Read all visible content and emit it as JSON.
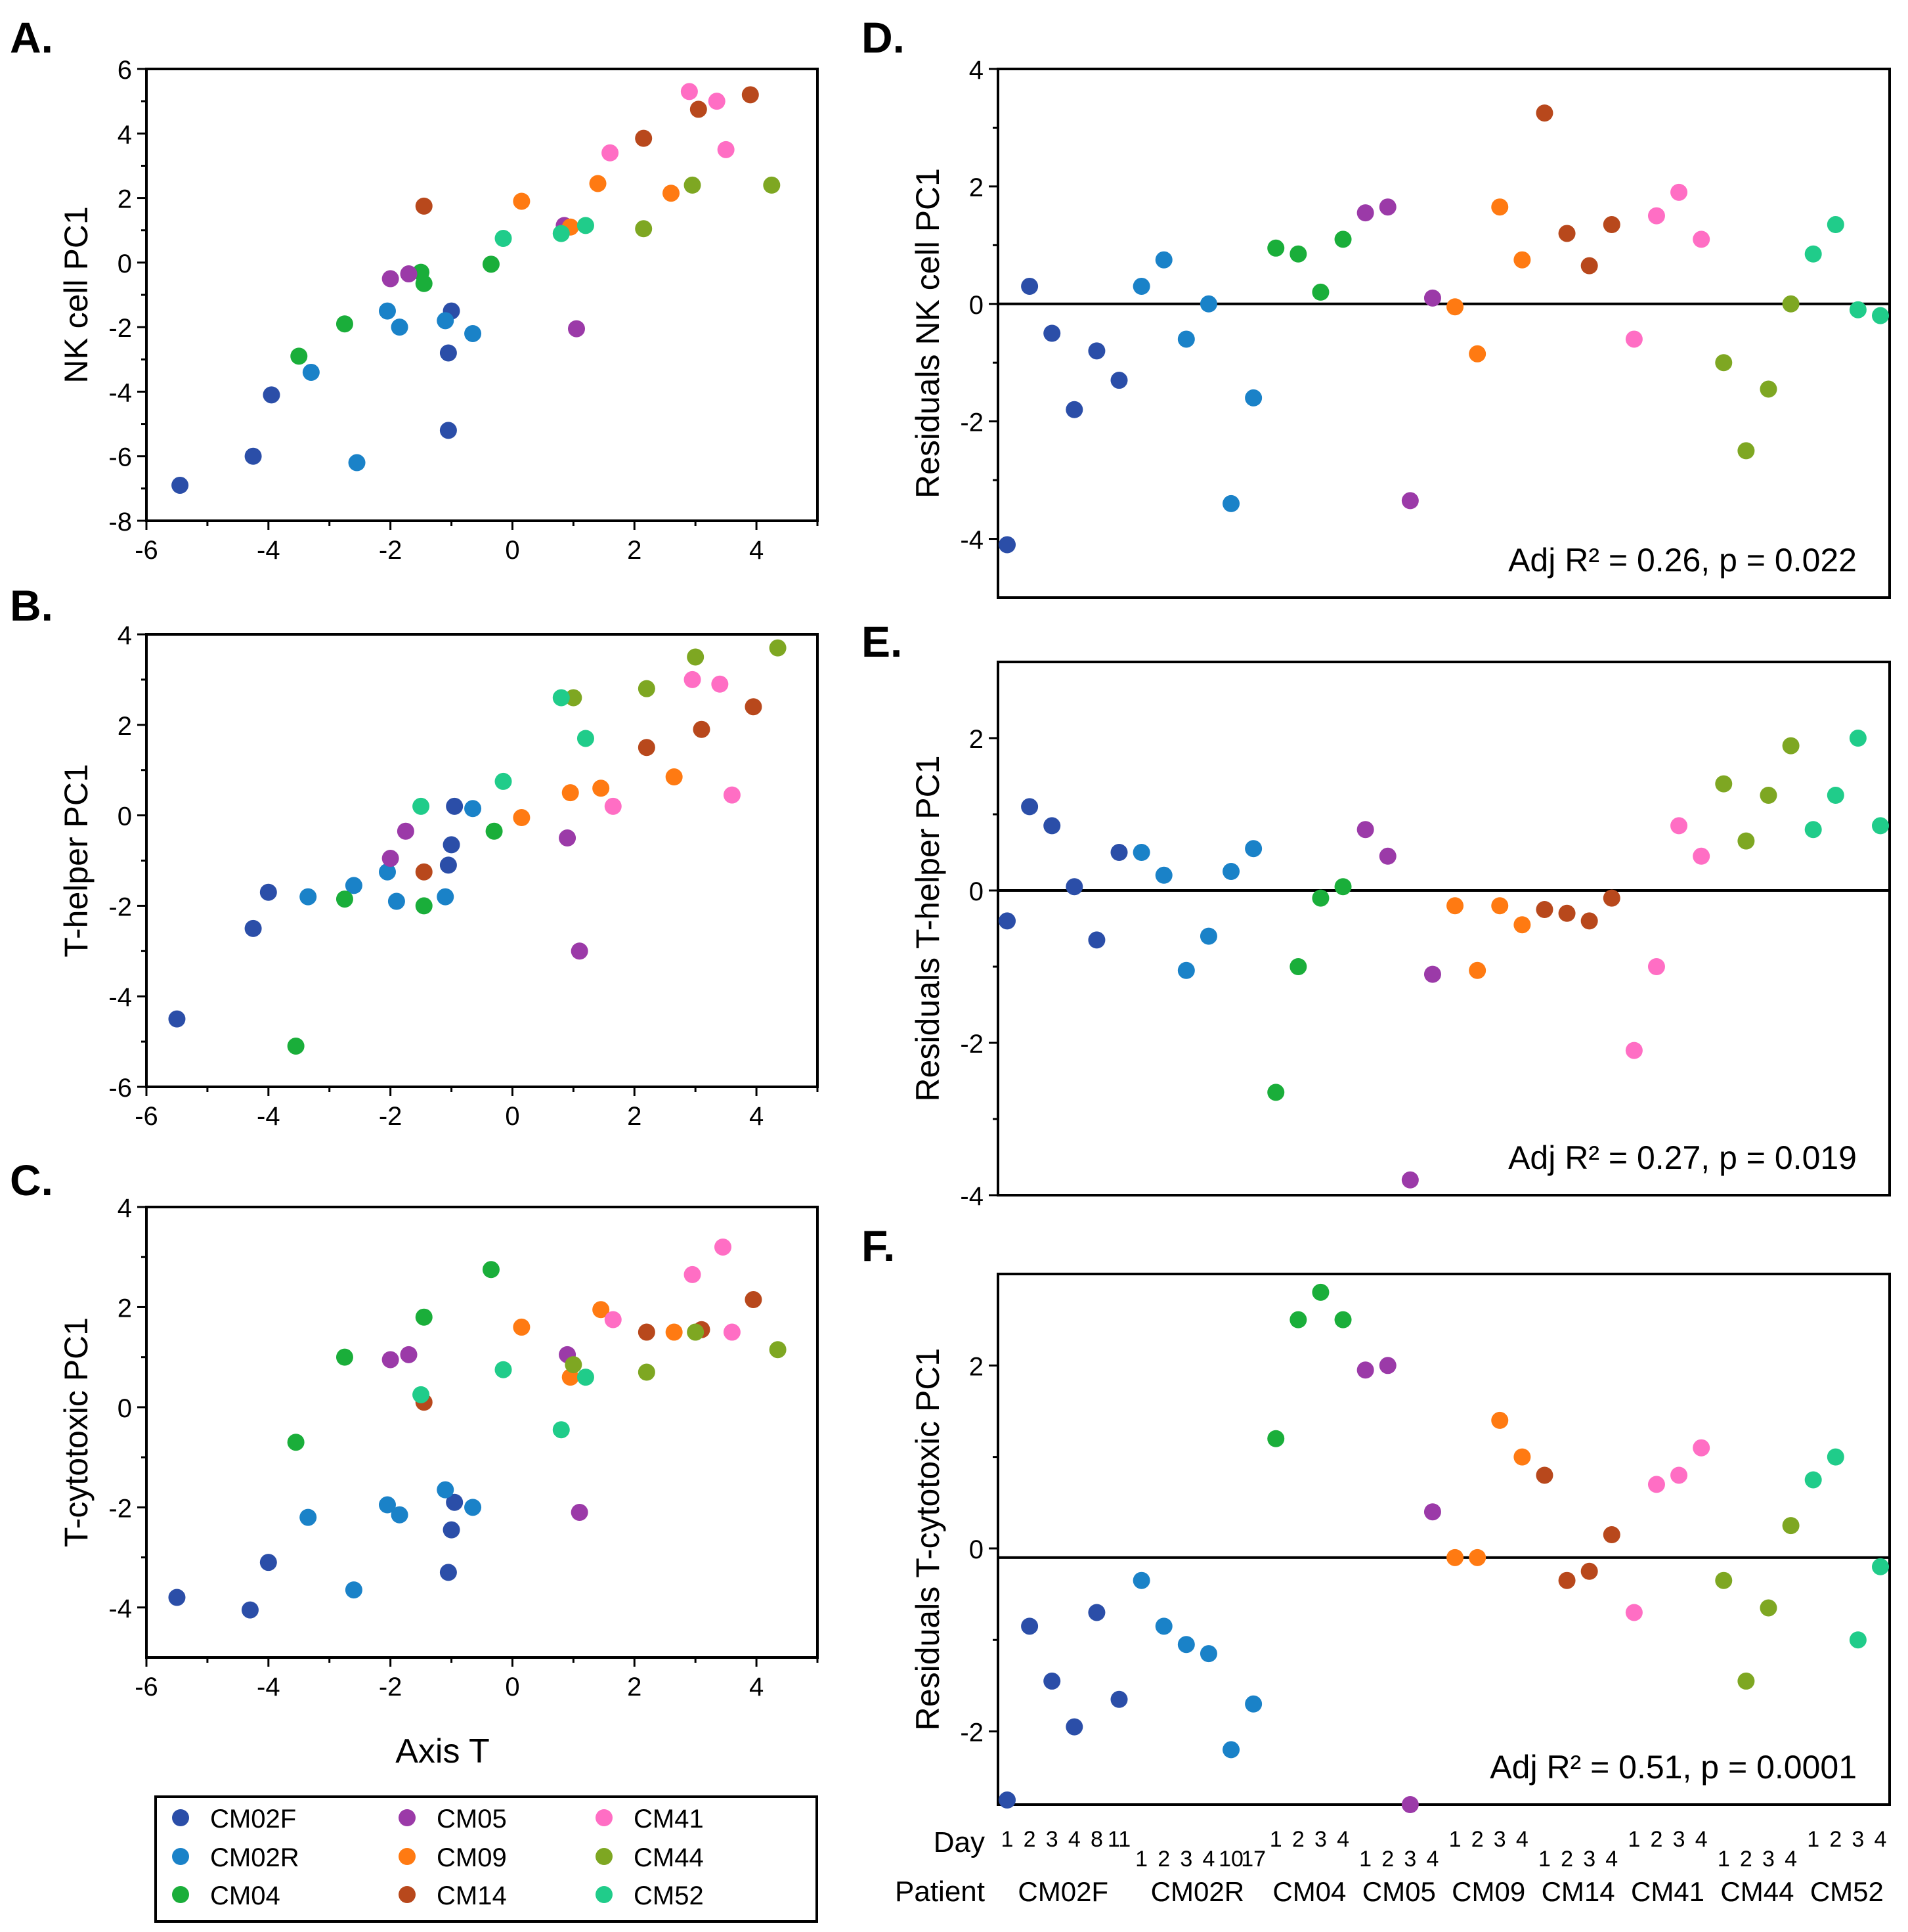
{
  "patients": {
    "CM02F": "#2b4ea8",
    "CM02R": "#1a82c8",
    "CM04": "#1aae3a",
    "CM05": "#9b3aa8",
    "CM09": "#ff7a12",
    "CM14": "#b8481c",
    "CM41": "#ff6ec4",
    "CM44": "#7ea722",
    "CM52": "#20cc8a"
  },
  "legend": {
    "items": [
      "CM02F",
      "CM05",
      "CM41",
      "CM02R",
      "CM09",
      "CM44",
      "CM04",
      "CM14",
      "CM52"
    ]
  },
  "labels": {
    "day": "Day",
    "patient": "Patient"
  },
  "chart_data": [
    {
      "id": "A",
      "panel_label": "A.",
      "type": "scatter",
      "title": "",
      "xlabel": "",
      "ylabel": "NK cell PC1",
      "xlim": [
        -6,
        5
      ],
      "ylim": [
        -8,
        6
      ],
      "xticks": [
        -6,
        -4,
        -2,
        0,
        2,
        4
      ],
      "yticks": [
        -8,
        -6,
        -4,
        -2,
        0,
        2,
        4,
        6
      ],
      "points": [
        {
          "p": "CM02F",
          "x": -5.45,
          "y": -6.9
        },
        {
          "p": "CM02F",
          "x": -4.25,
          "y": -6.0
        },
        {
          "p": "CM02F",
          "x": -3.95,
          "y": -4.1
        },
        {
          "p": "CM02F",
          "x": -1.0,
          "y": -1.5
        },
        {
          "p": "CM02F",
          "x": -1.05,
          "y": -2.8
        },
        {
          "p": "CM02F",
          "x": -1.05,
          "y": -5.2
        },
        {
          "p": "CM02R",
          "x": -3.3,
          "y": -3.4
        },
        {
          "p": "CM02R",
          "x": -2.55,
          "y": -6.2
        },
        {
          "p": "CM02R",
          "x": -2.05,
          "y": -1.5
        },
        {
          "p": "CM02R",
          "x": -1.85,
          "y": -2.0
        },
        {
          "p": "CM02R",
          "x": -1.1,
          "y": -1.8
        },
        {
          "p": "CM02R",
          "x": -0.65,
          "y": -2.2
        },
        {
          "p": "CM04",
          "x": -3.5,
          "y": -2.9
        },
        {
          "p": "CM04",
          "x": -2.75,
          "y": -1.9
        },
        {
          "p": "CM04",
          "x": -1.5,
          "y": -0.3
        },
        {
          "p": "CM04",
          "x": -1.45,
          "y": -0.65
        },
        {
          "p": "CM04",
          "x": -0.35,
          "y": -0.05
        },
        {
          "p": "CM05",
          "x": -2.0,
          "y": -0.5
        },
        {
          "p": "CM05",
          "x": -1.7,
          "y": -0.35
        },
        {
          "p": "CM05",
          "x": 0.85,
          "y": 1.15
        },
        {
          "p": "CM05",
          "x": 1.05,
          "y": -2.05
        },
        {
          "p": "CM09",
          "x": 0.15,
          "y": 1.9
        },
        {
          "p": "CM09",
          "x": 0.95,
          "y": 1.1
        },
        {
          "p": "CM09",
          "x": 1.4,
          "y": 2.45
        },
        {
          "p": "CM09",
          "x": 2.6,
          "y": 2.15
        },
        {
          "p": "CM14",
          "x": -1.45,
          "y": 1.75
        },
        {
          "p": "CM14",
          "x": 2.15,
          "y": 3.85
        },
        {
          "p": "CM14",
          "x": 3.05,
          "y": 4.75
        },
        {
          "p": "CM14",
          "x": 3.9,
          "y": 5.2
        },
        {
          "p": "CM41",
          "x": 1.6,
          "y": 3.4
        },
        {
          "p": "CM41",
          "x": 2.9,
          "y": 5.3
        },
        {
          "p": "CM41",
          "x": 3.35,
          "y": 5.0
        },
        {
          "p": "CM41",
          "x": 3.5,
          "y": 3.5
        },
        {
          "p": "CM44",
          "x": 2.15,
          "y": 1.05
        },
        {
          "p": "CM44",
          "x": 2.95,
          "y": 2.4
        },
        {
          "p": "CM44",
          "x": 4.25,
          "y": 2.4
        },
        {
          "p": "CM52",
          "x": -0.15,
          "y": 0.75
        },
        {
          "p": "CM52",
          "x": 0.8,
          "y": 0.9
        },
        {
          "p": "CM52",
          "x": 1.2,
          "y": 1.15
        }
      ]
    },
    {
      "id": "B",
      "panel_label": "B.",
      "type": "scatter",
      "title": "",
      "xlabel": "",
      "ylabel": "T-helper PC1",
      "xlim": [
        -6,
        5
      ],
      "ylim": [
        -6,
        4
      ],
      "xticks": [
        -6,
        -4,
        -2,
        0,
        2,
        4
      ],
      "yticks": [
        -6,
        -4,
        -2,
        0,
        2,
        4
      ],
      "points": [
        {
          "p": "CM02F",
          "x": -5.5,
          "y": -4.5
        },
        {
          "p": "CM02F",
          "x": -4.25,
          "y": -2.5
        },
        {
          "p": "CM02F",
          "x": -4.0,
          "y": -1.7
        },
        {
          "p": "CM02F",
          "x": -0.95,
          "y": 0.2
        },
        {
          "p": "CM02F",
          "x": -1.0,
          "y": -0.65
        },
        {
          "p": "CM02F",
          "x": -1.05,
          "y": -1.1
        },
        {
          "p": "CM02R",
          "x": -3.35,
          "y": -1.8
        },
        {
          "p": "CM02R",
          "x": -2.6,
          "y": -1.55
        },
        {
          "p": "CM02R",
          "x": -2.05,
          "y": -1.25
        },
        {
          "p": "CM02R",
          "x": -1.9,
          "y": -1.9
        },
        {
          "p": "CM02R",
          "x": -1.1,
          "y": -1.8
        },
        {
          "p": "CM02R",
          "x": -0.65,
          "y": 0.15
        },
        {
          "p": "CM04",
          "x": -3.55,
          "y": -5.1
        },
        {
          "p": "CM04",
          "x": -2.75,
          "y": -1.85
        },
        {
          "p": "CM04",
          "x": -1.45,
          "y": -2.0
        },
        {
          "p": "CM04",
          "x": -0.3,
          "y": -0.35
        },
        {
          "p": "CM05",
          "x": -2.0,
          "y": -0.95
        },
        {
          "p": "CM05",
          "x": -1.75,
          "y": -0.35
        },
        {
          "p": "CM05",
          "x": 0.9,
          "y": -0.5
        },
        {
          "p": "CM05",
          "x": 1.1,
          "y": -3.0
        },
        {
          "p": "CM09",
          "x": 0.15,
          "y": -0.05
        },
        {
          "p": "CM09",
          "x": 0.95,
          "y": 0.5
        },
        {
          "p": "CM09",
          "x": 1.45,
          "y": 0.6
        },
        {
          "p": "CM09",
          "x": 2.65,
          "y": 0.85
        },
        {
          "p": "CM14",
          "x": -1.45,
          "y": -1.25
        },
        {
          "p": "CM14",
          "x": 2.2,
          "y": 1.5
        },
        {
          "p": "CM14",
          "x": 3.1,
          "y": 1.9
        },
        {
          "p": "CM14",
          "x": 3.95,
          "y": 2.4
        },
        {
          "p": "CM41",
          "x": 1.65,
          "y": 0.2
        },
        {
          "p": "CM41",
          "x": 2.95,
          "y": 3.0
        },
        {
          "p": "CM41",
          "x": 3.4,
          "y": 2.9
        },
        {
          "p": "CM41",
          "x": 3.6,
          "y": 0.45
        },
        {
          "p": "CM44",
          "x": 1.0,
          "y": 2.6
        },
        {
          "p": "CM44",
          "x": 2.2,
          "y": 2.8
        },
        {
          "p": "CM44",
          "x": 3.0,
          "y": 3.5
        },
        {
          "p": "CM44",
          "x": 4.35,
          "y": 3.7
        },
        {
          "p": "CM52",
          "x": -1.5,
          "y": 0.2
        },
        {
          "p": "CM52",
          "x": -0.15,
          "y": 0.75
        },
        {
          "p": "CM52",
          "x": 0.8,
          "y": 2.6
        },
        {
          "p": "CM52",
          "x": 1.2,
          "y": 1.7
        }
      ]
    },
    {
      "id": "C",
      "panel_label": "C.",
      "type": "scatter",
      "title": "",
      "xlabel": "Axis T",
      "ylabel": "T-cytotoxic PC1",
      "xlim": [
        -6,
        5
      ],
      "ylim": [
        -5,
        4
      ],
      "xticks": [
        -6,
        -4,
        -2,
        0,
        2,
        4
      ],
      "yticks": [
        -4,
        -2,
        0,
        2,
        4
      ],
      "points": [
        {
          "p": "CM02F",
          "x": -5.5,
          "y": -3.8
        },
        {
          "p": "CM02F",
          "x": -4.3,
          "y": -4.05
        },
        {
          "p": "CM02F",
          "x": -4.0,
          "y": -3.1
        },
        {
          "p": "CM02F",
          "x": -0.95,
          "y": -1.9
        },
        {
          "p": "CM02F",
          "x": -1.0,
          "y": -2.45
        },
        {
          "p": "CM02F",
          "x": -1.05,
          "y": -3.3
        },
        {
          "p": "CM02R",
          "x": -3.35,
          "y": -2.2
        },
        {
          "p": "CM02R",
          "x": -2.6,
          "y": -3.65
        },
        {
          "p": "CM02R",
          "x": -2.05,
          "y": -1.95
        },
        {
          "p": "CM02R",
          "x": -1.85,
          "y": -2.15
        },
        {
          "p": "CM02R",
          "x": -1.1,
          "y": -1.65
        },
        {
          "p": "CM02R",
          "x": -0.65,
          "y": -2.0
        },
        {
          "p": "CM04",
          "x": -3.55,
          "y": -0.7
        },
        {
          "p": "CM04",
          "x": -2.75,
          "y": 1.0
        },
        {
          "p": "CM04",
          "x": -1.45,
          "y": 1.8
        },
        {
          "p": "CM04",
          "x": -0.35,
          "y": 2.75
        },
        {
          "p": "CM05",
          "x": -2.0,
          "y": 0.95
        },
        {
          "p": "CM05",
          "x": -1.7,
          "y": 1.05
        },
        {
          "p": "CM05",
          "x": 0.9,
          "y": 1.05
        },
        {
          "p": "CM05",
          "x": 1.1,
          "y": -2.1
        },
        {
          "p": "CM09",
          "x": 0.15,
          "y": 1.6
        },
        {
          "p": "CM09",
          "x": 0.95,
          "y": 0.6
        },
        {
          "p": "CM09",
          "x": 1.45,
          "y": 1.95
        },
        {
          "p": "CM09",
          "x": 2.65,
          "y": 1.5
        },
        {
          "p": "CM14",
          "x": -1.45,
          "y": 0.1
        },
        {
          "p": "CM14",
          "x": 2.2,
          "y": 1.5
        },
        {
          "p": "CM14",
          "x": 3.1,
          "y": 1.55
        },
        {
          "p": "CM14",
          "x": 3.95,
          "y": 2.15
        },
        {
          "p": "CM41",
          "x": 1.65,
          "y": 1.75
        },
        {
          "p": "CM41",
          "x": 2.95,
          "y": 2.65
        },
        {
          "p": "CM41",
          "x": 3.45,
          "y": 3.2
        },
        {
          "p": "CM41",
          "x": 3.6,
          "y": 1.5
        },
        {
          "p": "CM44",
          "x": 1.0,
          "y": 0.85
        },
        {
          "p": "CM44",
          "x": 2.2,
          "y": 0.7
        },
        {
          "p": "CM44",
          "x": 3.0,
          "y": 1.5
        },
        {
          "p": "CM44",
          "x": 4.35,
          "y": 1.15
        },
        {
          "p": "CM52",
          "x": -1.5,
          "y": 0.25
        },
        {
          "p": "CM52",
          "x": -0.15,
          "y": 0.75
        },
        {
          "p": "CM52",
          "x": 0.8,
          "y": -0.45
        },
        {
          "p": "CM52",
          "x": 1.2,
          "y": 0.6
        }
      ]
    },
    {
      "id": "D",
      "panel_label": "D.",
      "type": "scatter",
      "title": "",
      "ylabel": "Residuals NK cell PC1",
      "ylim": [
        -5,
        4
      ],
      "yticks": [
        -4,
        -2,
        0,
        2,
        4
      ],
      "hline": 0,
      "annotation": "Adj R² = 0.26, p = 0.022",
      "values": [
        -4.1,
        0.3,
        -0.5,
        -1.8,
        -0.8,
        -1.3,
        0.3,
        0.75,
        -0.6,
        0.0,
        -3.4,
        -1.6,
        0.95,
        0.85,
        0.2,
        1.1,
        1.55,
        1.65,
        -3.35,
        0.1,
        -0.05,
        -0.85,
        1.65,
        0.75,
        3.25,
        1.2,
        0.65,
        1.35,
        -0.6,
        1.5,
        1.9,
        1.1,
        -1.0,
        -2.5,
        -1.45,
        0.0,
        0.85,
        1.35,
        -0.1,
        -0.2
      ]
    },
    {
      "id": "E",
      "panel_label": "E.",
      "type": "scatter",
      "title": "",
      "ylabel": "Residuals T-helper PC1",
      "ylim": [
        -4,
        3
      ],
      "yticks": [
        -4,
        -2,
        0,
        2
      ],
      "hline": 0,
      "annotation": "Adj R² = 0.27, p = 0.019",
      "values": [
        -0.4,
        1.1,
        0.85,
        0.05,
        -0.65,
        0.5,
        0.5,
        0.2,
        -1.05,
        -0.6,
        0.25,
        0.55,
        -2.65,
        -1.0,
        -0.1,
        0.05,
        0.8,
        0.45,
        -3.8,
        -1.1,
        -0.2,
        -1.05,
        -0.2,
        -0.45,
        -0.25,
        -0.3,
        -0.4,
        -0.1,
        -2.1,
        -1.0,
        0.85,
        0.45,
        1.4,
        0.65,
        1.25,
        1.9,
        0.8,
        1.25,
        2.0,
        0.85
      ]
    },
    {
      "id": "F",
      "panel_label": "F.",
      "type": "scatter",
      "title": "",
      "ylabel": "Residuals T-cytotoxic PC1",
      "ylim": [
        -2.8,
        3.0
      ],
      "yticks": [
        -2,
        0,
        2
      ],
      "hline": -0.1,
      "annotation": "Adj R² = 0.51, p = 0.0001",
      "values": [
        -2.75,
        -0.85,
        -1.45,
        -1.95,
        -0.7,
        -1.65,
        -0.35,
        -0.85,
        -1.05,
        -1.15,
        -2.2,
        -1.7,
        1.2,
        2.5,
        2.8,
        2.5,
        1.95,
        2.0,
        -2.8,
        0.4,
        -0.1,
        -0.1,
        1.4,
        1.0,
        0.8,
        -0.35,
        -0.25,
        0.15,
        -0.7,
        0.7,
        0.8,
        1.1,
        -0.35,
        -1.45,
        -0.65,
        0.25,
        0.75,
        1.0,
        -1.0,
        -0.2
      ],
      "groups": [
        {
          "patient": "CM02F",
          "days": [
            "1",
            "2",
            "3",
            "4",
            "8",
            "11"
          ]
        },
        {
          "patient": "CM02R",
          "days": [
            "1",
            "2",
            "3",
            "4",
            "10",
            "17"
          ]
        },
        {
          "patient": "CM04",
          "days": [
            "1",
            "2",
            "3",
            "4"
          ]
        },
        {
          "patient": "CM05",
          "days": [
            "1",
            "2",
            "3",
            "4"
          ]
        },
        {
          "patient": "CM09",
          "days": [
            "1",
            "2",
            "3",
            "4"
          ]
        },
        {
          "patient": "CM14",
          "days": [
            "1",
            "2",
            "3",
            "4"
          ]
        },
        {
          "patient": "CM41",
          "days": [
            "1",
            "2",
            "3",
            "4"
          ]
        },
        {
          "patient": "CM44",
          "days": [
            "1",
            "2",
            "3",
            "4"
          ]
        },
        {
          "patient": "CM52",
          "days": [
            "1",
            "2",
            "3",
            "4"
          ]
        }
      ]
    }
  ]
}
